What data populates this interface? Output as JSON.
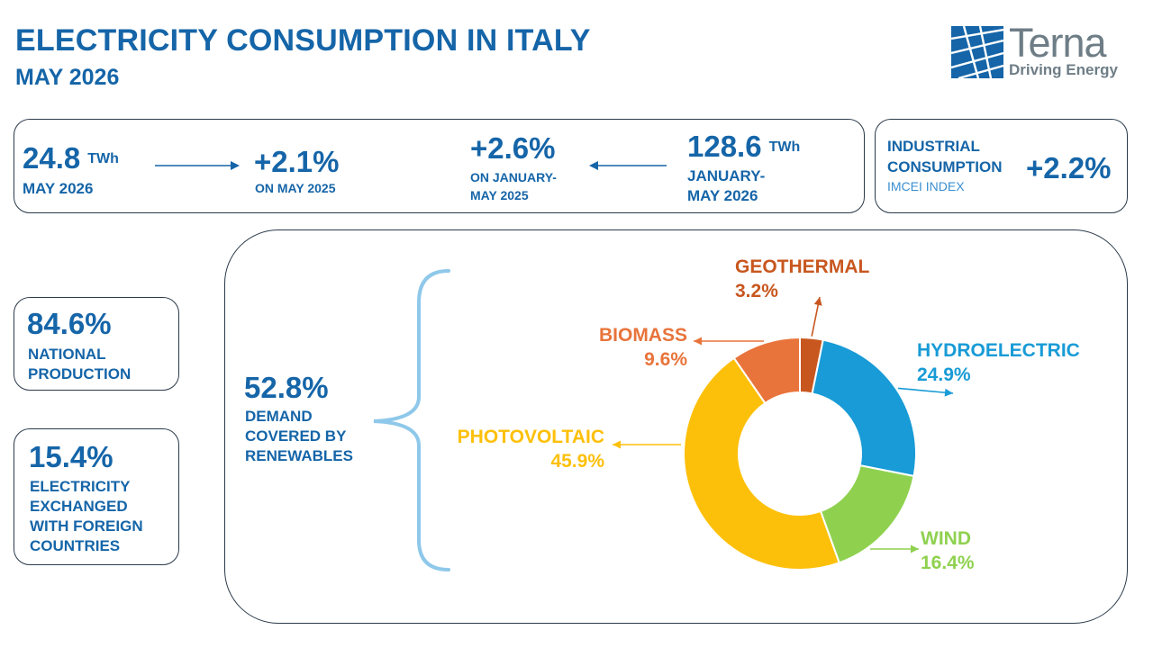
{
  "header": {
    "title": "ELECTRICITY CONSUMPTION IN ITALY",
    "subtitle": "MAY 2026"
  },
  "logo": {
    "name": "Terna",
    "tagline": "Driving Energy",
    "color": "#1565a8"
  },
  "summary": {
    "monthly": {
      "value": "24.8",
      "unit": "TWh",
      "label": "MAY 2026"
    },
    "monthly_change": {
      "value": "+2.1%",
      "label": "ON MAY 2025"
    },
    "ytd_change": {
      "value": "+2.6%",
      "label_line1": "ON JANUARY-",
      "label_line2": "MAY 2025"
    },
    "ytd": {
      "value": "128.6",
      "unit": "TWh",
      "label_line1": "JANUARY-",
      "label_line2": "MAY 2026"
    }
  },
  "industrial": {
    "label_line1": "INDUSTRIAL",
    "label_line2": "CONSUMPTION",
    "index_label": "IMCEI INDEX",
    "value": "+2.2%"
  },
  "national_production": {
    "value": "84.6%",
    "label_line1": "NATIONAL",
    "label_line2": "PRODUCTION"
  },
  "foreign_exchange": {
    "value": "15.4%",
    "label_line1": "ELECTRICITY",
    "label_line2": "EXCHANGED",
    "label_line3": "WITH FOREIGN",
    "label_line4": "COUNTRIES"
  },
  "renewables": {
    "value": "52.8%",
    "label_line1": "DEMAND",
    "label_line2": "COVERED BY",
    "label_line3": "RENEWABLES"
  },
  "chart_data": {
    "type": "pie",
    "categories": [
      "GEOTHERMAL",
      "HYDROELECTRIC",
      "WIND",
      "PHOTOVOLTAIC",
      "BIOMASS"
    ],
    "values": [
      3.2,
      24.9,
      16.4,
      45.9,
      9.6
    ],
    "value_labels": [
      "3.2%",
      "24.9%",
      "16.4%",
      "45.9%",
      "9.6%"
    ],
    "colors": [
      "#c8571f",
      "#189bd6",
      "#8fd14f",
      "#fdc00a",
      "#e8743b"
    ],
    "donut": true
  }
}
